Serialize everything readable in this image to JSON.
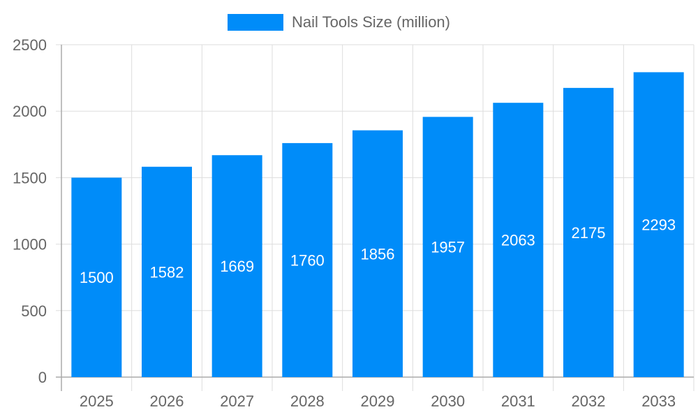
{
  "legend": {
    "label": "Nail Tools Size (million)",
    "color": "#008CF9"
  },
  "colors": {
    "bar": "#008CF9",
    "bar_label": "#ffffff",
    "grid": "#dddddd",
    "axis": "#aaaaaa",
    "tick_text": "#666666"
  },
  "chart_data": {
    "type": "bar",
    "title": "",
    "xlabel": "",
    "ylabel": "",
    "categories": [
      "2025",
      "2026",
      "2027",
      "2028",
      "2029",
      "2030",
      "2031",
      "2032",
      "2033"
    ],
    "series": [
      {
        "name": "Nail Tools Size (million)",
        "values": [
          1500,
          1582,
          1669,
          1760,
          1856,
          1957,
          2063,
          2175,
          2293
        ]
      }
    ],
    "ylim": [
      0,
      2500
    ],
    "yticks": [
      0,
      500,
      1000,
      1500,
      2000,
      2500
    ],
    "grid": true,
    "legend_position": "top",
    "data_labels": true
  }
}
